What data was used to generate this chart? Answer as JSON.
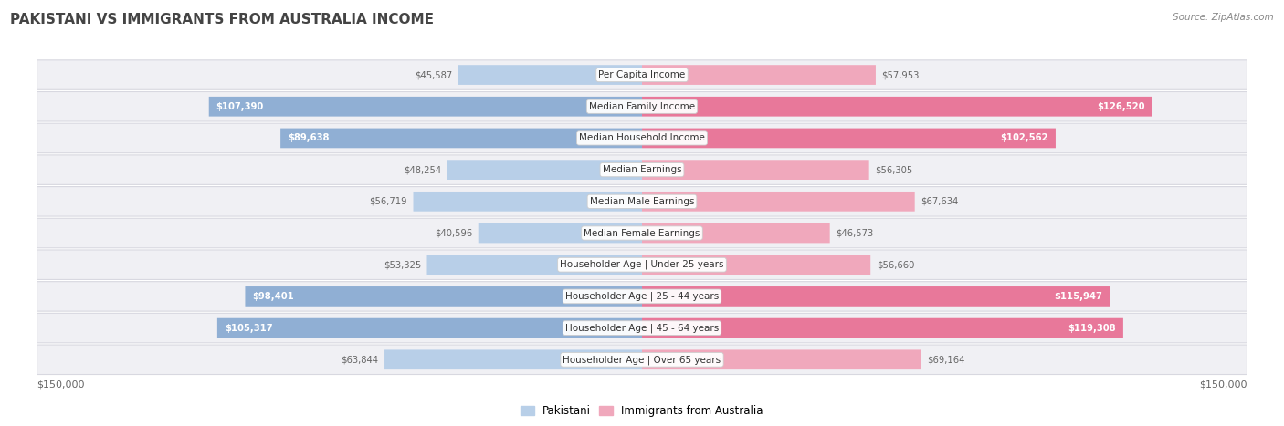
{
  "title": "PAKISTANI VS IMMIGRANTS FROM AUSTRALIA INCOME",
  "source": "Source: ZipAtlas.com",
  "categories": [
    "Per Capita Income",
    "Median Family Income",
    "Median Household Income",
    "Median Earnings",
    "Median Male Earnings",
    "Median Female Earnings",
    "Householder Age | Under 25 years",
    "Householder Age | 25 - 44 years",
    "Householder Age | 45 - 64 years",
    "Householder Age | Over 65 years"
  ],
  "pakistani_values": [
    45587,
    107390,
    89638,
    48254,
    56719,
    40596,
    53325,
    98401,
    105317,
    63844
  ],
  "australia_values": [
    57953,
    126520,
    102562,
    56305,
    67634,
    46573,
    56660,
    115947,
    119308,
    69164
  ],
  "pakistani_labels": [
    "$45,587",
    "$107,390",
    "$89,638",
    "$48,254",
    "$56,719",
    "$40,596",
    "$53,325",
    "$98,401",
    "$105,317",
    "$63,844"
  ],
  "australia_labels": [
    "$57,953",
    "$126,520",
    "$102,562",
    "$56,305",
    "$67,634",
    "$46,573",
    "$56,660",
    "$115,947",
    "$119,308",
    "$69,164"
  ],
  "max_value": 150000,
  "pakistani_color": "#90afd4",
  "australia_color": "#e8789a",
  "pak_light_color": "#b8cfe8",
  "aus_light_color": "#f0a8bc",
  "pakistani_label_threshold": 80000,
  "australia_label_threshold": 80000,
  "bar_height": 0.62,
  "row_bg_color": "#f0f0f4",
  "row_border_color": "#d8d8e0",
  "fig_bg_color": "#ffffff",
  "label_inside_color": "#ffffff",
  "label_outside_color": "#666666",
  "legend_pakistani": "Pakistani",
  "legend_australia": "Immigrants from Australia",
  "x_label_left": "$150,000",
  "x_label_right": "$150,000",
  "title_color": "#444444",
  "source_color": "#888888"
}
